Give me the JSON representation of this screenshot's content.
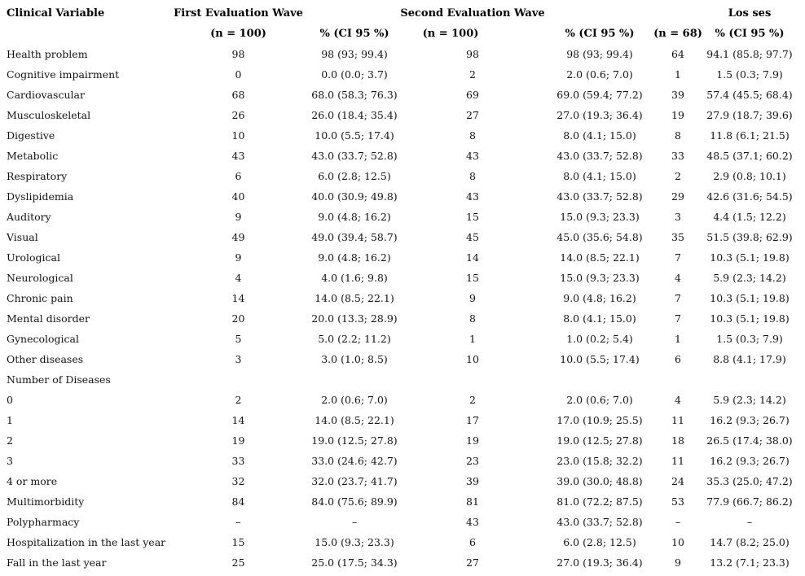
{
  "colors": {
    "background": "#ffffff",
    "text": "#141414"
  },
  "table": {
    "group_headers": {
      "clinical_variable": "Clinical Variable",
      "first_wave": "First Evaluation Wave",
      "second_wave": "Second Evaluation Wave",
      "losses": "Los ses"
    },
    "sub_headers": {
      "first_n": "(n = 100)",
      "first_pct": "% (CI 95 %)",
      "second_n": "(n = 100)",
      "second_pct": "% (CI 95 %)",
      "losses_n": "(n = 68)",
      "losses_pct": "% (CI 95 %)"
    },
    "rows": [
      {
        "label": "Health problem",
        "first_n": "98",
        "first_pct": "98 (93; 99.4)",
        "second_n": "98",
        "second_pct": "98 (93; 99.4)",
        "losses_n": "64",
        "losses_pct": "94.1 (85.8; 97.7)"
      },
      {
        "label": "Cognitive impairment",
        "first_n": "0",
        "first_pct": "0.0 (0.0; 3.7)",
        "second_n": "2",
        "second_pct": "2.0 (0.6; 7.0)",
        "losses_n": "1",
        "losses_pct": "1.5 (0.3; 7.9)"
      },
      {
        "label": "Cardiovascular",
        "first_n": "68",
        "first_pct": "68.0 (58.3; 76.3)",
        "second_n": "69",
        "second_pct": "69.0 (59.4; 77.2)",
        "losses_n": "39",
        "losses_pct": "57.4 (45.5; 68.4)"
      },
      {
        "label": "Musculoskeletal",
        "first_n": "26",
        "first_pct": "26.0 (18.4; 35.4)",
        "second_n": "27",
        "second_pct": "27.0 (19.3; 36.4)",
        "losses_n": "19",
        "losses_pct": "27.9 (18.7; 39.6)"
      },
      {
        "label": "Digestive",
        "first_n": "10",
        "first_pct": "10.0 (5.5; 17.4)",
        "second_n": "8",
        "second_pct": "8.0 (4.1; 15.0)",
        "losses_n": "8",
        "losses_pct": "11.8 (6.1; 21.5)"
      },
      {
        "label": "Metabolic",
        "first_n": "43",
        "first_pct": "43.0 (33.7; 52.8)",
        "second_n": "43",
        "second_pct": "43.0 (33.7; 52.8)",
        "losses_n": "33",
        "losses_pct": "48.5 (37.1; 60.2)"
      },
      {
        "label": "Respiratory",
        "first_n": "6",
        "first_pct": "6.0 (2.8; 12.5)",
        "second_n": "8",
        "second_pct": "8.0 (4.1; 15.0)",
        "losses_n": "2",
        "losses_pct": "2.9 (0.8; 10.1)"
      },
      {
        "label": "Dyslipidemia",
        "first_n": "40",
        "first_pct": "40.0 (30.9; 49.8)",
        "second_n": "43",
        "second_pct": "43.0 (33.7; 52.8)",
        "losses_n": "29",
        "losses_pct": "42.6 (31.6; 54.5)"
      },
      {
        "label": "Auditory",
        "first_n": "9",
        "first_pct": "9.0 (4.8; 16.2)",
        "second_n": "15",
        "second_pct": "15.0 (9.3; 23.3)",
        "losses_n": "3",
        "losses_pct": "4.4 (1.5; 12.2)"
      },
      {
        "label": "Visual",
        "first_n": "49",
        "first_pct": "49.0 (39.4; 58.7)",
        "second_n": "45",
        "second_pct": "45.0 (35.6; 54.8)",
        "losses_n": "35",
        "losses_pct": "51.5 (39.8; 62.9)"
      },
      {
        "label": "Urological",
        "first_n": "9",
        "first_pct": "9.0 (4.8; 16.2)",
        "second_n": "14",
        "second_pct": "14.0 (8.5; 22.1)",
        "losses_n": "7",
        "losses_pct": "10.3 (5.1; 19.8)"
      },
      {
        "label": "Neurological",
        "first_n": "4",
        "first_pct": "4.0 (1.6; 9.8)",
        "second_n": "15",
        "second_pct": "15.0 (9.3; 23.3)",
        "losses_n": "4",
        "losses_pct": "5.9 (2.3; 14.2)"
      },
      {
        "label": "Chronic pain",
        "first_n": "14",
        "first_pct": "14.0 (8.5; 22.1)",
        "second_n": "9",
        "second_pct": "9.0 (4.8; 16.2)",
        "losses_n": "7",
        "losses_pct": "10.3 (5.1; 19.8)"
      },
      {
        "label": "Mental disorder",
        "first_n": "20",
        "first_pct": "20.0 (13.3; 28.9)",
        "second_n": "8",
        "second_pct": "8.0 (4.1; 15.0)",
        "losses_n": "7",
        "losses_pct": "10.3 (5.1; 19.8)"
      },
      {
        "label": "Gynecological",
        "first_n": "5",
        "first_pct": "5.0 (2.2; 11.2)",
        "second_n": "1",
        "second_pct": "1.0 (0.2; 5.4)",
        "losses_n": "1",
        "losses_pct": "1.5 (0.3; 7.9)"
      },
      {
        "label": "Other diseases",
        "first_n": "3",
        "first_pct": "3.0 (1.0; 8.5)",
        "second_n": "10",
        "second_pct": "10.0 (5.5; 17.4)",
        "losses_n": "6",
        "losses_pct": "8.8 (4.1; 17.9)"
      },
      {
        "label": "Number of Diseases",
        "first_n": "",
        "first_pct": "",
        "second_n": "",
        "second_pct": "",
        "losses_n": "",
        "losses_pct": ""
      },
      {
        "label": "0",
        "first_n": "2",
        "first_pct": "2.0 (0.6; 7.0)",
        "second_n": "2",
        "second_pct": "2.0 (0.6; 7.0)",
        "losses_n": "4",
        "losses_pct": "5.9 (2.3; 14.2)"
      },
      {
        "label": "1",
        "first_n": "14",
        "first_pct": "14.0 (8.5; 22.1)",
        "second_n": "17",
        "second_pct": "17.0 (10.9; 25.5)",
        "losses_n": "11",
        "losses_pct": "16.2 (9.3; 26.7)"
      },
      {
        "label": "2",
        "first_n": "19",
        "first_pct": "19.0 (12.5; 27.8)",
        "second_n": "19",
        "second_pct": "19.0 (12.5; 27.8)",
        "losses_n": "18",
        "losses_pct": "26.5 (17.4; 38.0)"
      },
      {
        "label": "3",
        "first_n": "33",
        "first_pct": "33.0 (24.6; 42.7)",
        "second_n": "23",
        "second_pct": "23.0 (15.8; 32.2)",
        "losses_n": "11",
        "losses_pct": "16.2 (9.3; 26.7)"
      },
      {
        "label": "4 or more",
        "first_n": "32",
        "first_pct": "32.0 (23.7; 41.7)",
        "second_n": "39",
        "second_pct": "39.0 (30.0; 48.8)",
        "losses_n": "24",
        "losses_pct": "35.3 (25.0; 47.2)"
      },
      {
        "label": "Multimorbidity",
        "first_n": "84",
        "first_pct": "84.0 (75.6; 89.9)",
        "second_n": "81",
        "second_pct": "81.0 (72.2; 87.5)",
        "losses_n": "53",
        "losses_pct": "77.9 (66.7; 86.2)"
      },
      {
        "label": "Polypharmacy",
        "first_n": "–",
        "first_pct": "–",
        "second_n": "43",
        "second_pct": "43.0 (33.7; 52.8)",
        "losses_n": "–",
        "losses_pct": "–"
      },
      {
        "label": "Hospitalization in the last year",
        "first_n": "15",
        "first_pct": "15.0 (9.3; 23.3)",
        "second_n": "6",
        "second_pct": "6.0 (2.8; 12.5)",
        "losses_n": "10",
        "losses_pct": "14.7 (8.2; 25.0)"
      },
      {
        "label": "Fall in the last year",
        "first_n": "25",
        "first_pct": "25.0 (17.5; 34.3)",
        "second_n": "27",
        "second_pct": "27.0 (19.3; 36.4)",
        "losses_n": "9",
        "losses_pct": "13.2 (7.1; 23.3)"
      }
    ]
  }
}
